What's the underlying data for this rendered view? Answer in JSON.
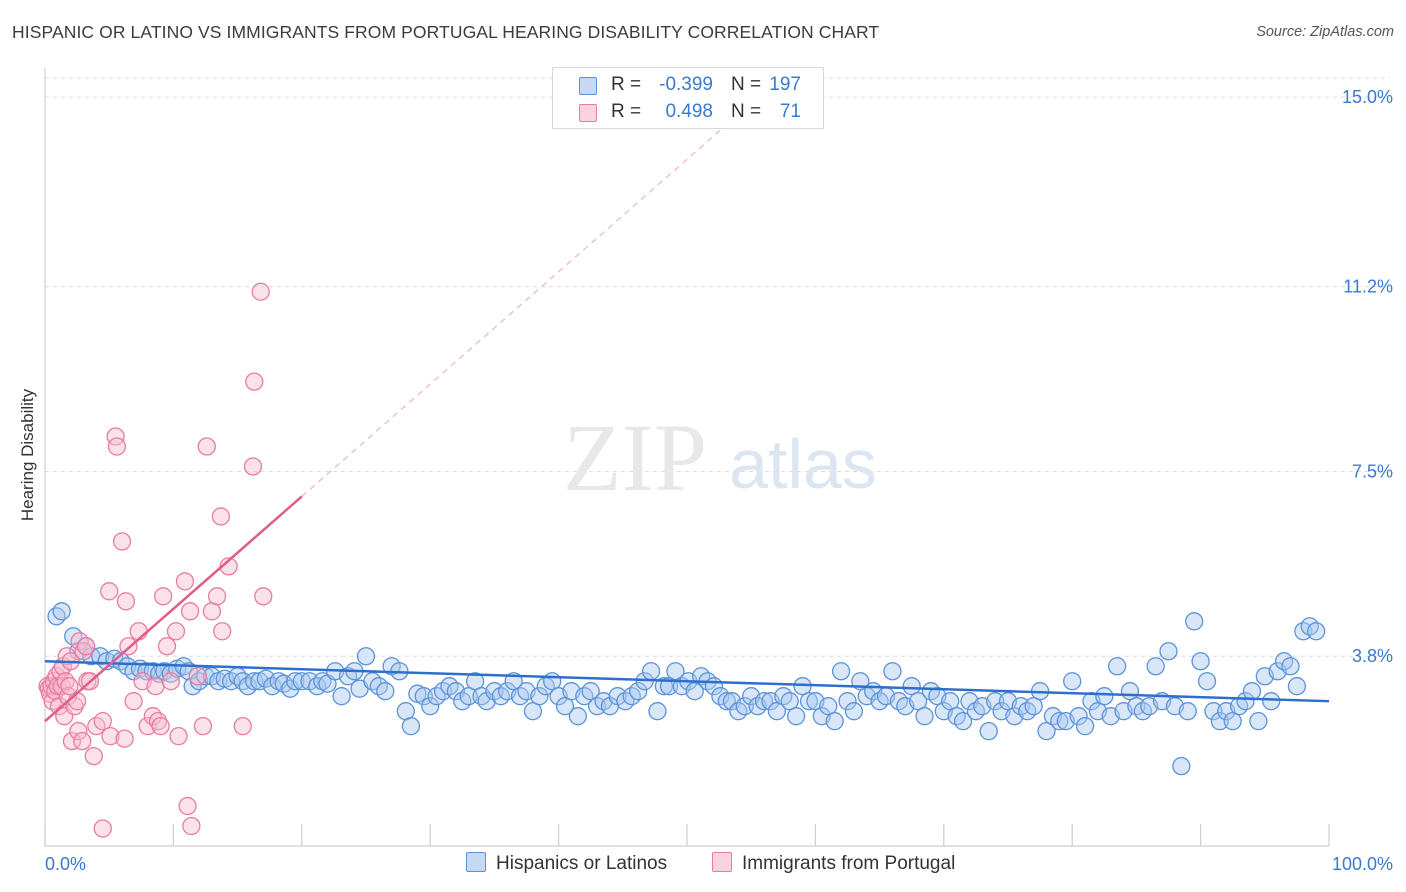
{
  "header": {
    "title": "HISPANIC OR LATINO VS IMMIGRANTS FROM PORTUGAL HEARING DISABILITY CORRELATION CHART",
    "source": "Source: ZipAtlas.com"
  },
  "watermark": {
    "zip": "ZIP",
    "atlas": "atlas"
  },
  "colors": {
    "blue": "#5b93d9",
    "blue_fill": "#a9c8f0",
    "blue_line": "#2e6fcc",
    "pink": "#e87ca0",
    "pink_fill": "#f6bcd0",
    "pink_line": "#e05c8a",
    "axis_text": "#3b78d0",
    "grid": "#dcdcdc"
  },
  "legend": {
    "rows": [
      {
        "r_label": "R =",
        "r_value": "-0.399",
        "n_label": "N =",
        "n_value": "197"
      },
      {
        "r_label": "R =",
        "r_value": "0.498",
        "n_label": "N =",
        "n_value": "71"
      }
    ]
  },
  "bottom_legend": {
    "items": [
      {
        "label": "Hispanics or Latinos"
      },
      {
        "label": "Immigrants from Portugal"
      }
    ]
  },
  "chart_data": {
    "type": "scatter",
    "title": "HISPANIC OR LATINO VS IMMIGRANTS FROM PORTUGAL HEARING DISABILITY CORRELATION CHART",
    "xlabel": "",
    "ylabel": "Hearing Disability",
    "xlim": [
      0,
      100
    ],
    "ylim": [
      0,
      15.5
    ],
    "x_tick_labels": [
      "0.0%",
      "100.0%"
    ],
    "y_ticks": [
      3.8,
      7.5,
      11.2,
      15.0
    ],
    "y_tick_labels": [
      "3.8%",
      "7.5%",
      "11.2%",
      "15.0%"
    ],
    "grid": true,
    "legend_position": "top-center",
    "series": [
      {
        "name": "Hispanics or Latinos",
        "R": -0.399,
        "N": 197,
        "trend": {
          "x": [
            0,
            100
          ],
          "y": [
            3.7,
            2.9
          ]
        },
        "points": [
          [
            0.9,
            4.6
          ],
          [
            1.3,
            4.7
          ],
          [
            2.2,
            4.2
          ],
          [
            2.6,
            3.9
          ],
          [
            3.2,
            4.0
          ],
          [
            3.6,
            3.8
          ],
          [
            4.3,
            3.8
          ],
          [
            4.8,
            3.7
          ],
          [
            5.4,
            3.75
          ],
          [
            5.9,
            3.7
          ],
          [
            6.4,
            3.6
          ],
          [
            6.9,
            3.5
          ],
          [
            7.4,
            3.55
          ],
          [
            7.9,
            3.5
          ],
          [
            8.4,
            3.5
          ],
          [
            8.9,
            3.45
          ],
          [
            9.3,
            3.5
          ],
          [
            9.8,
            3.45
          ],
          [
            10.3,
            3.55
          ],
          [
            10.8,
            3.6
          ],
          [
            11.2,
            3.5
          ],
          [
            11.5,
            3.2
          ],
          [
            12.0,
            3.3
          ],
          [
            12.5,
            3.4
          ],
          [
            13.0,
            3.4
          ],
          [
            13.5,
            3.3
          ],
          [
            14.0,
            3.35
          ],
          [
            14.5,
            3.3
          ],
          [
            15.0,
            3.4
          ],
          [
            15.4,
            3.3
          ],
          [
            15.8,
            3.2
          ],
          [
            16.3,
            3.3
          ],
          [
            16.7,
            3.3
          ],
          [
            17.2,
            3.35
          ],
          [
            17.7,
            3.2
          ],
          [
            18.2,
            3.3
          ],
          [
            18.6,
            3.25
          ],
          [
            19.1,
            3.15
          ],
          [
            19.5,
            3.3
          ],
          [
            20.0,
            3.3
          ],
          [
            20.6,
            3.3
          ],
          [
            21.2,
            3.2
          ],
          [
            21.6,
            3.3
          ],
          [
            22.0,
            3.25
          ],
          [
            22.6,
            3.5
          ],
          [
            23.1,
            3.0
          ],
          [
            23.6,
            3.4
          ],
          [
            24.1,
            3.5
          ],
          [
            24.5,
            3.15
          ],
          [
            25.0,
            3.8
          ],
          [
            25.5,
            3.3
          ],
          [
            26.0,
            3.2
          ],
          [
            26.5,
            3.1
          ],
          [
            27.0,
            3.6
          ],
          [
            27.6,
            3.5
          ],
          [
            28.1,
            2.7
          ],
          [
            28.5,
            2.4
          ],
          [
            29.0,
            3.05
          ],
          [
            29.5,
            3.0
          ],
          [
            30.0,
            2.8
          ],
          [
            30.5,
            3.0
          ],
          [
            31.0,
            3.1
          ],
          [
            31.5,
            3.2
          ],
          [
            32.0,
            3.1
          ],
          [
            32.5,
            2.9
          ],
          [
            33.0,
            3.0
          ],
          [
            33.5,
            3.3
          ],
          [
            34.0,
            3.0
          ],
          [
            34.4,
            2.9
          ],
          [
            35.0,
            3.1
          ],
          [
            35.5,
            3.0
          ],
          [
            36.0,
            3.1
          ],
          [
            36.5,
            3.3
          ],
          [
            37.0,
            3.0
          ],
          [
            37.5,
            3.1
          ],
          [
            38.0,
            2.7
          ],
          [
            38.5,
            3.0
          ],
          [
            39.0,
            3.2
          ],
          [
            39.5,
            3.3
          ],
          [
            40.0,
            3.0
          ],
          [
            40.5,
            2.8
          ],
          [
            41.0,
            3.1
          ],
          [
            41.5,
            2.6
          ],
          [
            42.0,
            3.0
          ],
          [
            42.5,
            3.1
          ],
          [
            43.0,
            2.8
          ],
          [
            43.5,
            2.9
          ],
          [
            44.0,
            2.8
          ],
          [
            44.6,
            3.0
          ],
          [
            45.2,
            2.9
          ],
          [
            45.7,
            3.0
          ],
          [
            46.2,
            3.1
          ],
          [
            46.7,
            3.3
          ],
          [
            47.2,
            3.5
          ],
          [
            47.7,
            2.7
          ],
          [
            48.2,
            3.2
          ],
          [
            48.6,
            3.2
          ],
          [
            49.1,
            3.5
          ],
          [
            49.6,
            3.2
          ],
          [
            50.1,
            3.3
          ],
          [
            50.6,
            3.1
          ],
          [
            51.1,
            3.4
          ],
          [
            51.6,
            3.3
          ],
          [
            52.1,
            3.2
          ],
          [
            52.6,
            3.0
          ],
          [
            53.1,
            2.9
          ],
          [
            53.5,
            2.9
          ],
          [
            54.0,
            2.7
          ],
          [
            54.5,
            2.8
          ],
          [
            55.0,
            3.0
          ],
          [
            55.5,
            2.8
          ],
          [
            56.0,
            2.9
          ],
          [
            56.5,
            2.9
          ],
          [
            57.0,
            2.7
          ],
          [
            57.5,
            3.0
          ],
          [
            58.0,
            2.9
          ],
          [
            58.5,
            2.6
          ],
          [
            59.0,
            3.2
          ],
          [
            59.5,
            2.9
          ],
          [
            60.0,
            2.9
          ],
          [
            60.5,
            2.6
          ],
          [
            61.0,
            2.8
          ],
          [
            61.5,
            2.5
          ],
          [
            62.0,
            3.5
          ],
          [
            62.5,
            2.9
          ],
          [
            63.0,
            2.7
          ],
          [
            63.5,
            3.3
          ],
          [
            64.0,
            3.0
          ],
          [
            64.5,
            3.1
          ],
          [
            65.0,
            2.9
          ],
          [
            65.5,
            3.0
          ],
          [
            66.0,
            3.5
          ],
          [
            66.5,
            2.9
          ],
          [
            67.0,
            2.8
          ],
          [
            67.5,
            3.2
          ],
          [
            68.0,
            2.9
          ],
          [
            68.5,
            2.6
          ],
          [
            69.0,
            3.1
          ],
          [
            69.5,
            3.0
          ],
          [
            70.0,
            2.7
          ],
          [
            70.5,
            2.9
          ],
          [
            71.0,
            2.6
          ],
          [
            71.5,
            2.5
          ],
          [
            72.0,
            2.9
          ],
          [
            72.5,
            2.7
          ],
          [
            73.0,
            2.8
          ],
          [
            73.5,
            2.3
          ],
          [
            74.0,
            2.9
          ],
          [
            74.5,
            2.7
          ],
          [
            75.0,
            2.9
          ],
          [
            75.5,
            2.6
          ],
          [
            76.0,
            2.8
          ],
          [
            76.5,
            2.7
          ],
          [
            77.0,
            2.8
          ],
          [
            77.5,
            3.1
          ],
          [
            78.0,
            2.3
          ],
          [
            78.5,
            2.6
          ],
          [
            79.0,
            2.5
          ],
          [
            79.5,
            2.5
          ],
          [
            80.0,
            3.3
          ],
          [
            80.5,
            2.6
          ],
          [
            81.0,
            2.4
          ],
          [
            81.5,
            2.9
          ],
          [
            82.0,
            2.7
          ],
          [
            82.5,
            3.0
          ],
          [
            83.0,
            2.6
          ],
          [
            83.5,
            3.6
          ],
          [
            84.0,
            2.7
          ],
          [
            84.5,
            3.1
          ],
          [
            85.0,
            2.8
          ],
          [
            85.5,
            2.7
          ],
          [
            86.0,
            2.8
          ],
          [
            86.5,
            3.6
          ],
          [
            87.0,
            2.9
          ],
          [
            87.5,
            3.9
          ],
          [
            88.0,
            2.8
          ],
          [
            88.5,
            1.6
          ],
          [
            89.0,
            2.7
          ],
          [
            89.5,
            4.5
          ],
          [
            90.0,
            3.7
          ],
          [
            90.5,
            3.3
          ],
          [
            91.0,
            2.7
          ],
          [
            91.5,
            2.5
          ],
          [
            92.0,
            2.7
          ],
          [
            92.5,
            2.5
          ],
          [
            93.0,
            2.8
          ],
          [
            93.5,
            2.9
          ],
          [
            94.0,
            3.1
          ],
          [
            94.5,
            2.5
          ],
          [
            95.0,
            3.4
          ],
          [
            95.5,
            2.9
          ],
          [
            96.0,
            3.5
          ],
          [
            96.5,
            3.7
          ],
          [
            97.0,
            3.6
          ],
          [
            97.5,
            3.2
          ],
          [
            98.0,
            4.3
          ],
          [
            98.5,
            4.4
          ],
          [
            99.0,
            4.3
          ]
        ]
      },
      {
        "name": "Immigrants from Portugal",
        "R": 0.498,
        "N": 71,
        "trend": {
          "x": [
            0,
            20
          ],
          "y": [
            2.5,
            7.0
          ]
        },
        "points": [
          [
            0.2,
            3.2
          ],
          [
            0.3,
            3.15
          ],
          [
            0.4,
            3.05
          ],
          [
            0.5,
            3.2
          ],
          [
            0.6,
            2.9
          ],
          [
            0.7,
            3.3
          ],
          [
            0.8,
            3.1
          ],
          [
            0.9,
            3.4
          ],
          [
            1.0,
            3.2
          ],
          [
            1.1,
            2.8
          ],
          [
            1.2,
            3.5
          ],
          [
            1.3,
            3.2
          ],
          [
            1.4,
            3.6
          ],
          [
            1.5,
            2.6
          ],
          [
            1.6,
            3.3
          ],
          [
            1.7,
            3.8
          ],
          [
            1.8,
            3.0
          ],
          [
            1.9,
            3.2
          ],
          [
            2.0,
            3.7
          ],
          [
            2.1,
            2.1
          ],
          [
            2.3,
            2.8
          ],
          [
            2.5,
            2.9
          ],
          [
            2.6,
            2.3
          ],
          [
            2.7,
            4.1
          ],
          [
            2.9,
            2.1
          ],
          [
            3.0,
            3.9
          ],
          [
            3.2,
            4.0
          ],
          [
            3.3,
            3.3
          ],
          [
            3.5,
            3.3
          ],
          [
            3.8,
            1.8
          ],
          [
            4.0,
            2.4
          ],
          [
            4.5,
            2.5
          ],
          [
            5.1,
            2.2
          ],
          [
            5.5,
            8.2
          ],
          [
            5.6,
            8.0
          ],
          [
            6.0,
            6.1
          ],
          [
            6.3,
            4.9
          ],
          [
            6.5,
            4.0
          ],
          [
            6.9,
            2.9
          ],
          [
            7.3,
            4.3
          ],
          [
            7.6,
            3.3
          ],
          [
            8.0,
            2.4
          ],
          [
            8.4,
            2.6
          ],
          [
            8.6,
            3.2
          ],
          [
            8.8,
            2.5
          ],
          [
            9.0,
            2.4
          ],
          [
            9.2,
            5.0
          ],
          [
            9.5,
            4.0
          ],
          [
            9.8,
            3.3
          ],
          [
            10.2,
            4.3
          ],
          [
            10.4,
            2.2
          ],
          [
            10.9,
            5.3
          ],
          [
            11.3,
            4.7
          ],
          [
            11.4,
            0.4
          ],
          [
            11.9,
            3.4
          ],
          [
            12.3,
            2.4
          ],
          [
            12.6,
            8.0
          ],
          [
            13.0,
            4.7
          ],
          [
            13.4,
            5.0
          ],
          [
            13.8,
            4.3
          ],
          [
            14.3,
            5.6
          ],
          [
            13.7,
            6.6
          ],
          [
            15.4,
            2.4
          ],
          [
            16.3,
            9.3
          ],
          [
            16.2,
            7.6
          ],
          [
            16.8,
            11.1
          ],
          [
            17.0,
            5.0
          ],
          [
            5.0,
            5.1
          ],
          [
            4.5,
            0.35
          ],
          [
            6.2,
            2.15
          ],
          [
            11.1,
            0.8
          ]
        ]
      }
    ]
  }
}
